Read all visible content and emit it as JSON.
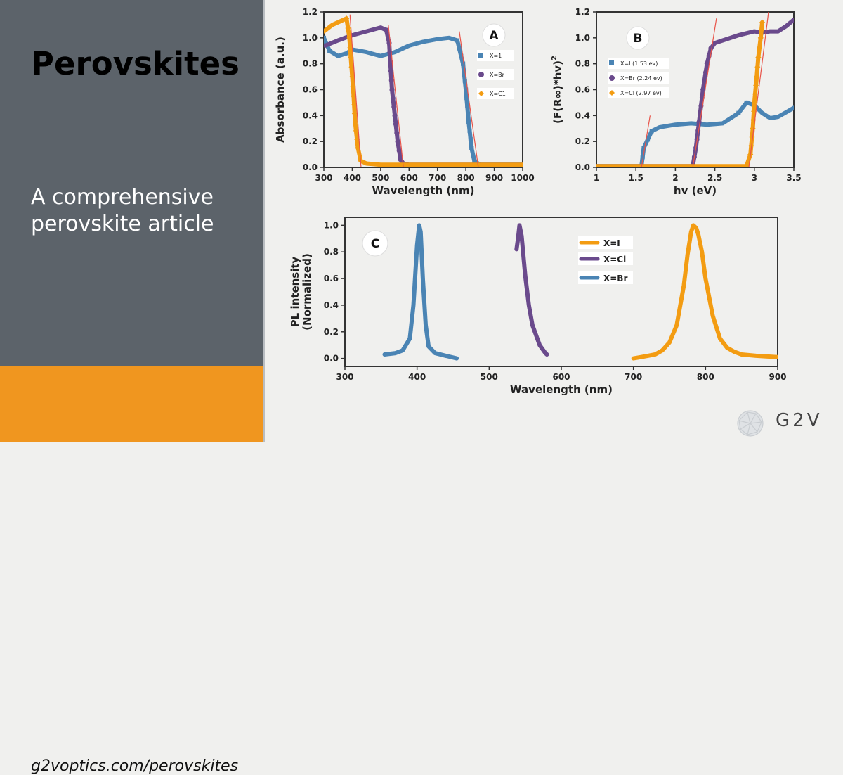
{
  "title": "Perovskites",
  "subtitle": "A comprehensive perovskite article",
  "url": "g2voptics.com/perovskites",
  "brand": "G2V",
  "colors": {
    "sidebar": "#5c636a",
    "banner": "#f0961f",
    "iodide": "#4a84b4",
    "bromide": "#6a4a8c",
    "chloride": "#f39c12",
    "fit_line": "#e8544a"
  },
  "chart_data": [
    {
      "panel": "A",
      "type": "line",
      "xlabel": "Wavelength (nm)",
      "ylabel": "Absorbance (a.u.)",
      "xlim": [
        300,
        1000
      ],
      "ylim": [
        0,
        1.2
      ],
      "xticks": [
        300,
        400,
        500,
        600,
        700,
        800,
        900,
        1000
      ],
      "yticks": [
        0.0,
        0.2,
        0.4,
        0.6,
        0.8,
        1.0,
        1.2
      ],
      "legend_position": "top-right",
      "series": [
        {
          "name": "X=1",
          "marker": "square",
          "x": [
            300,
            320,
            350,
            380,
            400,
            450,
            500,
            550,
            600,
            650,
            700,
            740,
            770,
            790,
            800,
            810,
            820,
            830,
            850,
            900,
            1000
          ],
          "y": [
            1.0,
            0.9,
            0.86,
            0.88,
            0.91,
            0.89,
            0.86,
            0.89,
            0.94,
            0.97,
            0.99,
            1.0,
            0.98,
            0.8,
            0.6,
            0.35,
            0.15,
            0.05,
            0.02,
            0.02,
            0.02
          ]
        },
        {
          "name": "X=Br",
          "marker": "circle",
          "x": [
            305,
            350,
            400,
            450,
            500,
            520,
            530,
            540,
            550,
            560,
            570,
            580,
            600,
            700,
            850,
            1000
          ],
          "y": [
            0.94,
            0.98,
            1.02,
            1.05,
            1.08,
            1.06,
            0.96,
            0.6,
            0.4,
            0.2,
            0.06,
            0.03,
            0.02,
            0.02,
            0.02,
            0.02
          ]
        },
        {
          "name": "X=C1",
          "marker": "diamond",
          "x": [
            300,
            330,
            360,
            380,
            390,
            400,
            405,
            410,
            420,
            430,
            450,
            500,
            700,
            1000
          ],
          "y": [
            1.05,
            1.1,
            1.13,
            1.15,
            1.0,
            0.7,
            0.55,
            0.35,
            0.15,
            0.05,
            0.03,
            0.02,
            0.02,
            0.02
          ]
        }
      ],
      "fit_lines": [
        {
          "x": [
            392,
            431
          ],
          "y": [
            1.18,
            0
          ]
        },
        {
          "x": [
            527,
            580
          ],
          "y": [
            1.1,
            0
          ]
        },
        {
          "x": [
            777,
            844
          ],
          "y": [
            1.05,
            0
          ]
        }
      ]
    },
    {
      "panel": "B",
      "type": "line",
      "xlabel": "hv (eV)",
      "ylabel": "(F(R∞)*hv)",
      "ylabel_superscript": "2",
      "xlim": [
        1.0,
        3.5
      ],
      "ylim": [
        0,
        1.2
      ],
      "xticks": [
        1.0,
        1.5,
        2.0,
        2.5,
        3.0,
        3.5
      ],
      "yticks": [
        0.0,
        0.2,
        0.4,
        0.6,
        0.8,
        1.0,
        1.2
      ],
      "legend_position": "top-left",
      "series": [
        {
          "name": "X=I (1.53 ev)",
          "marker": "square",
          "x": [
            1.0,
            1.57,
            1.6,
            1.7,
            1.8,
            2.0,
            2.2,
            2.4,
            2.6,
            2.8,
            2.9,
            3.0,
            3.1,
            3.2,
            3.3,
            3.5
          ],
          "y": [
            0.01,
            0.01,
            0.15,
            0.28,
            0.31,
            0.33,
            0.34,
            0.33,
            0.34,
            0.42,
            0.5,
            0.48,
            0.42,
            0.38,
            0.39,
            0.46
          ]
        },
        {
          "name": "X=Br (2.24 ev)",
          "marker": "circle",
          "x": [
            1.0,
            2.22,
            2.26,
            2.3,
            2.35,
            2.4,
            2.45,
            2.5,
            2.6,
            2.8,
            3.0,
            3.1,
            3.2,
            3.3,
            3.4,
            3.5
          ],
          "y": [
            0.01,
            0.01,
            0.15,
            0.35,
            0.6,
            0.8,
            0.92,
            0.96,
            0.98,
            1.02,
            1.05,
            1.04,
            1.05,
            1.05,
            1.09,
            1.14
          ]
        },
        {
          "name": "X=Cl (2.97 ev)",
          "marker": "diamond",
          "x": [
            1.0,
            2.9,
            2.95,
            2.98,
            3.0,
            3.03,
            3.05,
            3.08,
            3.1
          ],
          "y": [
            0.01,
            0.01,
            0.1,
            0.3,
            0.5,
            0.7,
            0.85,
            1.0,
            1.12
          ]
        }
      ],
      "fit_lines": [
        {
          "x": [
            1.57,
            1.68
          ],
          "y": [
            0,
            0.4
          ]
        },
        {
          "x": [
            2.22,
            2.52
          ],
          "y": [
            0,
            1.15
          ]
        },
        {
          "x": [
            2.92,
            3.18
          ],
          "y": [
            -0.05,
            1.2
          ]
        }
      ]
    },
    {
      "panel": "C",
      "type": "line",
      "xlabel": "Wavelength (nm)",
      "ylabel": "PL intensity (Normalized)",
      "ylabel_lines": [
        "PL intensity",
        "(Normalized)"
      ],
      "xlim": [
        300,
        900
      ],
      "ylim": [
        -0.06,
        1.06
      ],
      "xticks": [
        300,
        400,
        500,
        600,
        700,
        800,
        900
      ],
      "yticks": [
        0.0,
        0.2,
        0.4,
        0.6,
        0.8,
        1.0
      ],
      "legend_position": "top-right",
      "series": [
        {
          "name": "X=I",
          "x": [
            700,
            710,
            720,
            730,
            740,
            750,
            760,
            770,
            775,
            780,
            783,
            787,
            790,
            795,
            800,
            810,
            820,
            830,
            840,
            850,
            870,
            900
          ],
          "y": [
            0.0,
            0.01,
            0.02,
            0.03,
            0.06,
            0.12,
            0.25,
            0.55,
            0.78,
            0.95,
            1.0,
            0.98,
            0.93,
            0.8,
            0.6,
            0.32,
            0.15,
            0.08,
            0.05,
            0.03,
            0.02,
            0.01
          ]
        },
        {
          "name": "X=Cl",
          "x": [
            538,
            540,
            542,
            545,
            550,
            555,
            560,
            570,
            578,
            580
          ],
          "y": [
            0.82,
            0.9,
            1.0,
            0.92,
            0.62,
            0.4,
            0.25,
            0.1,
            0.04,
            0.03
          ]
        },
        {
          "name": "X=Br",
          "x": [
            355,
            370,
            380,
            390,
            395,
            400,
            403,
            405,
            408,
            412,
            416,
            425,
            440,
            455
          ],
          "y": [
            0.03,
            0.04,
            0.06,
            0.15,
            0.4,
            0.85,
            1.0,
            0.95,
            0.6,
            0.25,
            0.09,
            0.04,
            0.02,
            0.0
          ]
        }
      ]
    }
  ]
}
